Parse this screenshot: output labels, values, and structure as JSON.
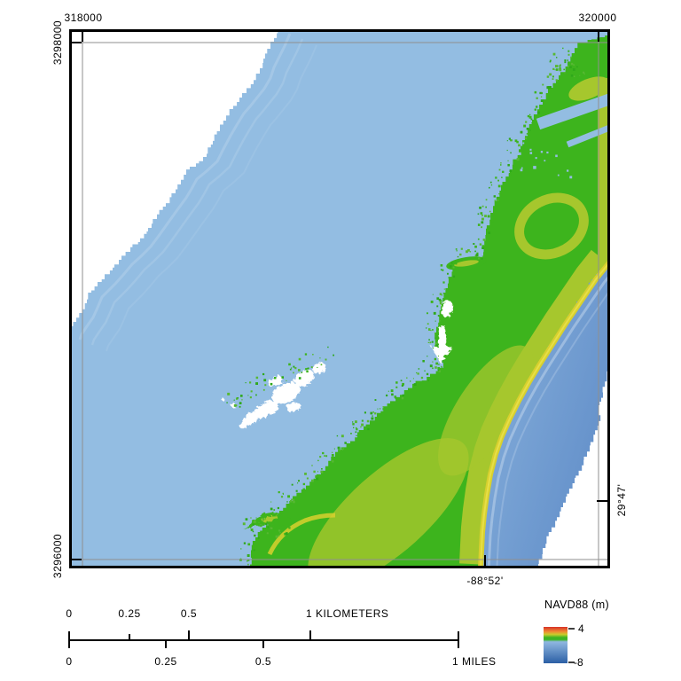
{
  "map": {
    "easting_left": "318000",
    "easting_right": "320000",
    "northing_top": "3298000",
    "northing_bottom": "3296000",
    "longitude": "-88°52'",
    "latitude": "29°47'"
  },
  "scalebar": {
    "km": {
      "t0": "0",
      "t1": "0.25",
      "t2": "0.5",
      "end": "1 KILOMETERS"
    },
    "mi": {
      "t0": "0",
      "t1": "0.25",
      "t2": "0.5",
      "end": "1 MILES"
    }
  },
  "legend": {
    "title": "NAVD88 (m)",
    "max": "4",
    "min": "-8",
    "ramp": [
      "#d73127",
      "#ef8b33",
      "#c9cd2b",
      "#3eb424",
      "#8fb7e0",
      "#2c5fa5"
    ]
  },
  "colors": {
    "sound_water": "#93bde2",
    "gulf_water_near": "#86afdb",
    "gulf_water_far": "#5e8bc7",
    "land_low": "#3db41d",
    "land_mid": "#a6c72d",
    "dune_ridge": "#d8d02e",
    "ridge_highlight": "#e8e04a",
    "speckle_green": "#2fa81a",
    "nodata": "#ffffff",
    "frame": "#000000",
    "gridline": "#8f8f8f"
  }
}
